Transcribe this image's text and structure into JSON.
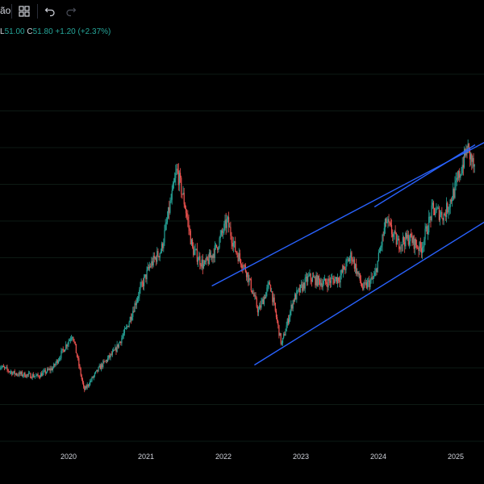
{
  "toolbar": {
    "interval_partial": "ão",
    "layout_icon": "grid-layout-icon",
    "undo_icon": "undo-icon",
    "redo_icon": "redo-icon"
  },
  "legend": {
    "low_label": "L",
    "low_value": "51.00",
    "close_label": "C",
    "close_value": "51.80",
    "change": "+1.20 (+2.37%)"
  },
  "colors": {
    "background": "#000000",
    "up_candle": "#26a69a",
    "down_candle": "#ef5350",
    "channel_line": "#2962ff",
    "axis_text": "#d1d4dc"
  },
  "chart_data": {
    "type": "candlestick",
    "x_tick_labels": [
      "2020",
      "2021",
      "2022",
      "2023",
      "2024",
      "2025"
    ],
    "price_path": [
      {
        "t": 2019.0,
        "p": 18
      },
      {
        "t": 2019.3,
        "p": 16
      },
      {
        "t": 2019.6,
        "p": 15.5
      },
      {
        "t": 2019.8,
        "p": 17
      },
      {
        "t": 2020.05,
        "p": 23
      },
      {
        "t": 2020.2,
        "p": 13
      },
      {
        "t": 2020.4,
        "p": 17
      },
      {
        "t": 2020.6,
        "p": 20
      },
      {
        "t": 2020.75,
        "p": 24
      },
      {
        "t": 2020.9,
        "p": 30
      },
      {
        "t": 2021.05,
        "p": 35
      },
      {
        "t": 2021.2,
        "p": 38
      },
      {
        "t": 2021.4,
        "p": 52
      },
      {
        "t": 2021.5,
        "p": 46
      },
      {
        "t": 2021.6,
        "p": 38
      },
      {
        "t": 2021.75,
        "p": 35
      },
      {
        "t": 2021.9,
        "p": 38
      },
      {
        "t": 2022.05,
        "p": 43
      },
      {
        "t": 2022.15,
        "p": 38
      },
      {
        "t": 2022.3,
        "p": 34
      },
      {
        "t": 2022.45,
        "p": 27
      },
      {
        "t": 2022.6,
        "p": 32
      },
      {
        "t": 2022.75,
        "p": 21
      },
      {
        "t": 2022.9,
        "p": 29
      },
      {
        "t": 2023.1,
        "p": 33
      },
      {
        "t": 2023.3,
        "p": 32
      },
      {
        "t": 2023.5,
        "p": 33
      },
      {
        "t": 2023.65,
        "p": 37
      },
      {
        "t": 2023.8,
        "p": 31
      },
      {
        "t": 2023.95,
        "p": 33
      },
      {
        "t": 2024.1,
        "p": 43
      },
      {
        "t": 2024.25,
        "p": 39
      },
      {
        "t": 2024.4,
        "p": 40
      },
      {
        "t": 2024.55,
        "p": 38
      },
      {
        "t": 2024.7,
        "p": 45
      },
      {
        "t": 2024.85,
        "p": 44
      },
      {
        "t": 2025.0,
        "p": 49
      },
      {
        "t": 2025.15,
        "p": 56
      },
      {
        "t": 2025.25,
        "p": 51.8
      }
    ],
    "channel_lines": [
      {
        "name": "",
        "from": {
          "t": 2021.85,
          "p": 31.5
        },
        "to": {
          "t": 2025.45,
          "p": 57.5
        }
      },
      {
        "name": "",
        "from": {
          "t": 2022.4,
          "p": 17.5
        },
        "to": {
          "t": 2025.45,
          "p": 43.5
        }
      },
      {
        "name": "",
        "from": {
          "t": 2023.95,
          "p": 45.5
        },
        "to": {
          "t": 2025.25,
          "p": 56.5
        }
      }
    ]
  }
}
